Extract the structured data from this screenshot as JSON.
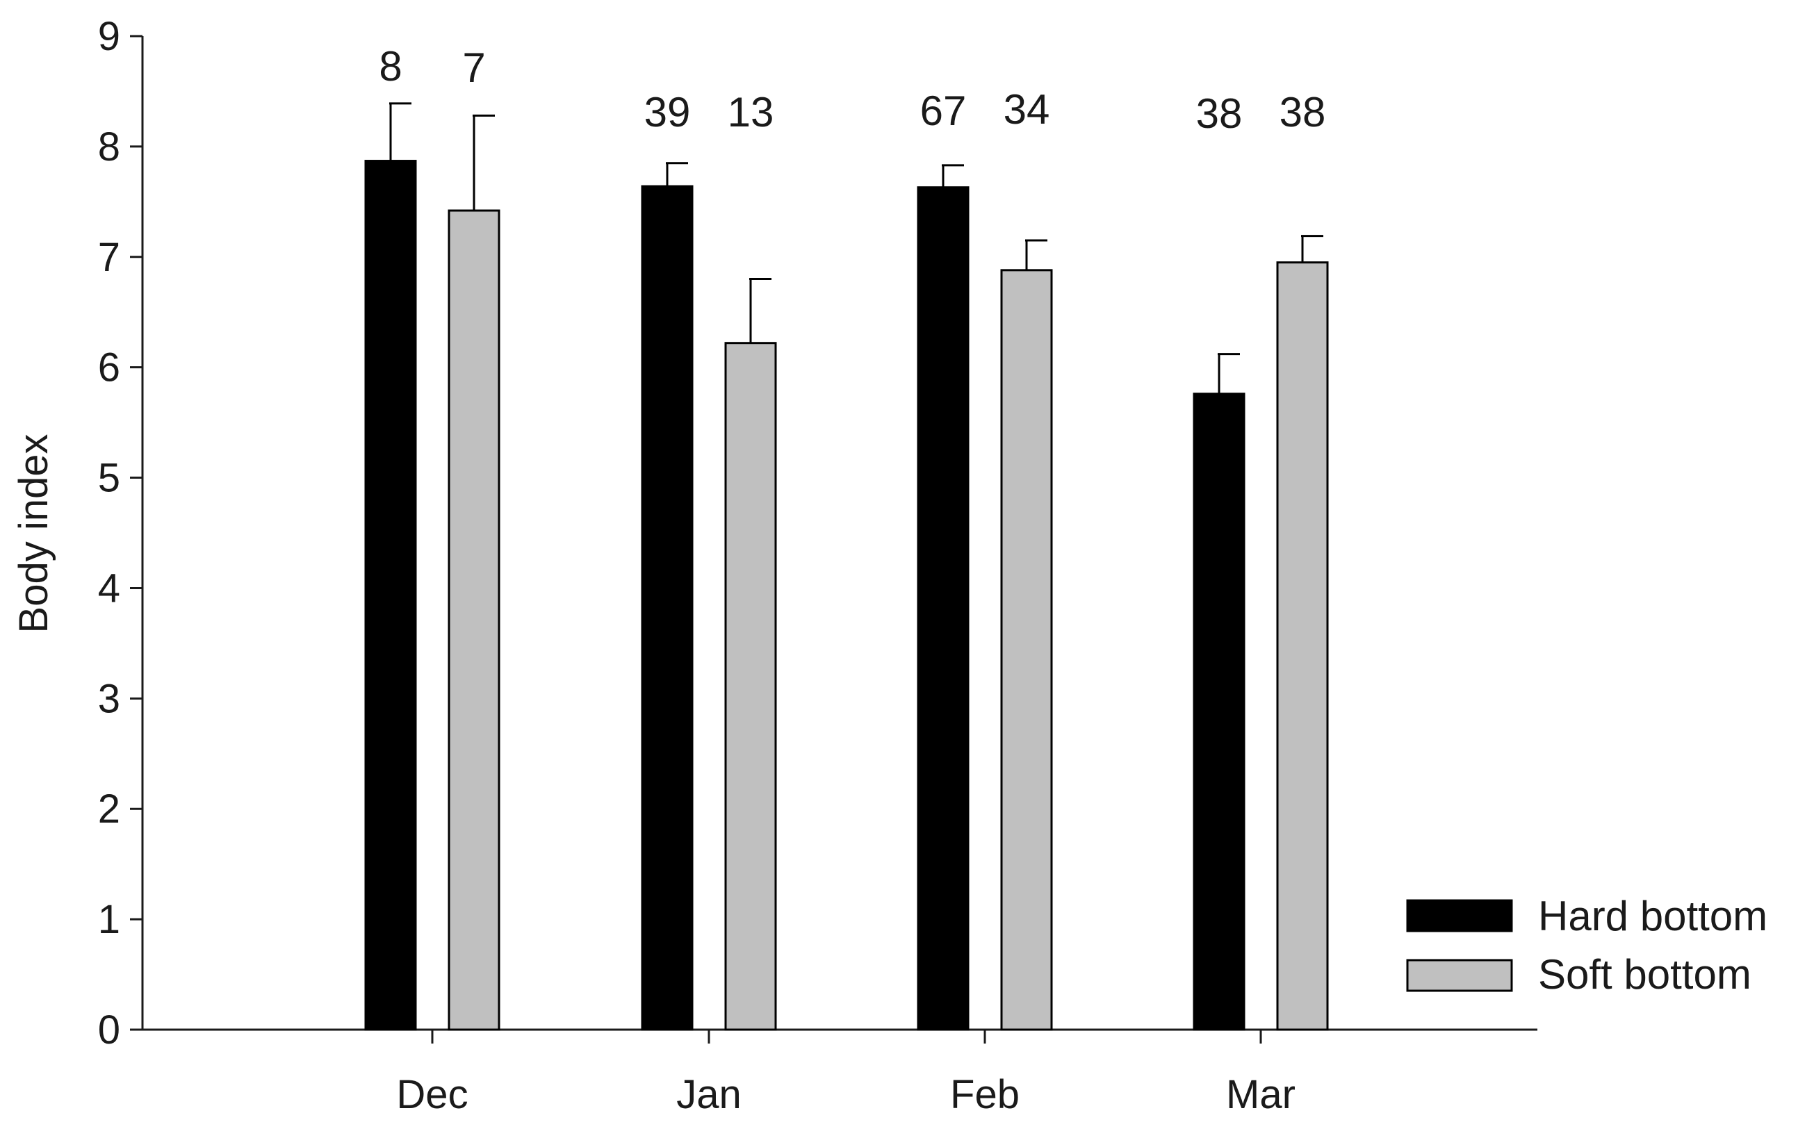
{
  "chart_data": {
    "type": "bar",
    "title": "",
    "xlabel": "",
    "ylabel": "Body index",
    "ylim": [
      0,
      9
    ],
    "yticks": [
      "0",
      "1",
      "2",
      "3",
      "4",
      "5",
      "6",
      "7",
      "8",
      "9"
    ],
    "categories": [
      "Dec",
      "Jan",
      "Feb",
      "Mar"
    ],
    "grid": false,
    "legend_position": "bottom-right",
    "series": [
      {
        "name": "Hard bottom",
        "color": "#000000",
        "values": [
          7.87,
          7.64,
          7.63,
          5.76
        ],
        "error_upper": [
          0.52,
          0.21,
          0.2,
          0.36
        ],
        "sample_sizes": [
          "8",
          "39",
          "67",
          "38"
        ]
      },
      {
        "name": "Soft bottom",
        "color": "#c0c0c0",
        "values": [
          7.42,
          6.22,
          6.88,
          6.95
        ],
        "error_upper": [
          0.86,
          0.58,
          0.27,
          0.24
        ],
        "sample_sizes": [
          "7",
          "13",
          "34",
          "38"
        ]
      }
    ]
  }
}
